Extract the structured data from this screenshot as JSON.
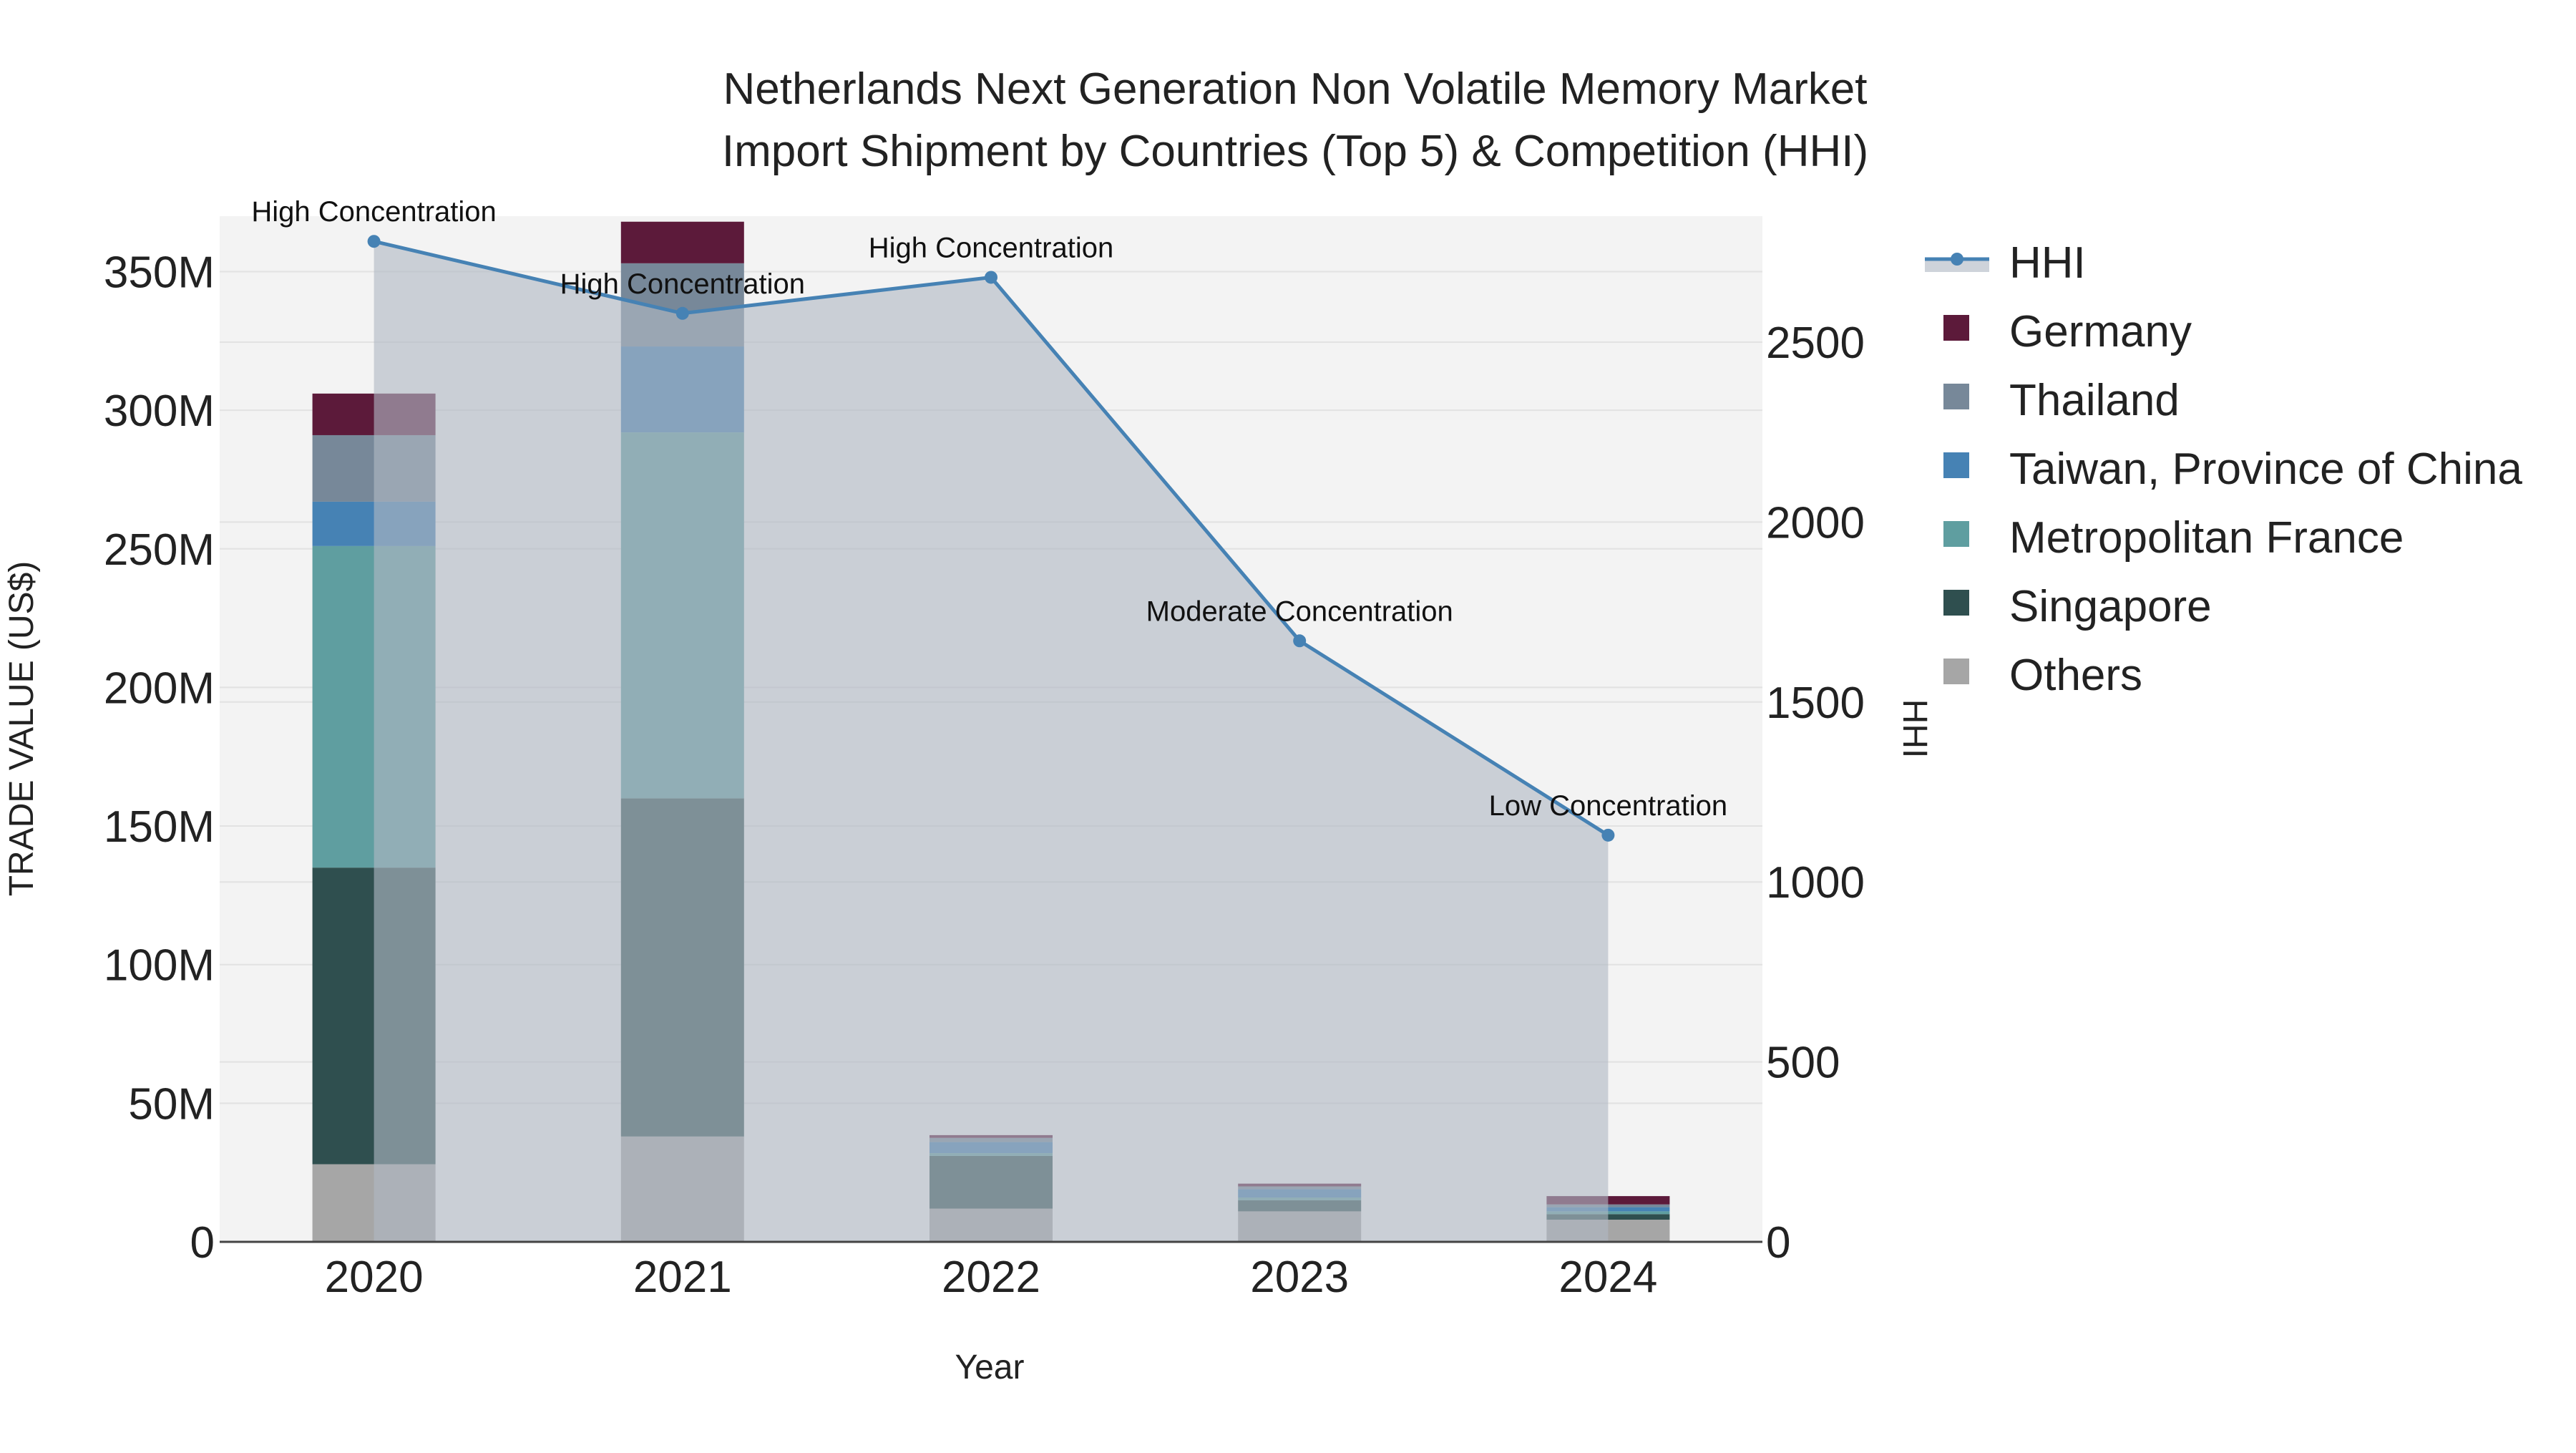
{
  "chart_data": {
    "type": "bar",
    "title_lines": [
      "Netherlands Next Generation Non Volatile Memory Market",
      "Import Shipment by Countries (Top 5) & Competition (HHI)"
    ],
    "xlabel": "Year",
    "ylabel": "TRADE VALUE (US$)",
    "y2label": "HHI",
    "categories": [
      "2020",
      "2021",
      "2022",
      "2023",
      "2024"
    ],
    "ylim": [
      0,
      370000000
    ],
    "y2lim": [
      0,
      2850
    ],
    "y_ticks": [
      {
        "value": 0,
        "label": "0"
      },
      {
        "value": 50000000,
        "label": "50M"
      },
      {
        "value": 100000000,
        "label": "100M"
      },
      {
        "value": 150000000,
        "label": "150M"
      },
      {
        "value": 200000000,
        "label": "200M"
      },
      {
        "value": 250000000,
        "label": "250M"
      },
      {
        "value": 300000000,
        "label": "300M"
      },
      {
        "value": 350000000,
        "label": "350M"
      }
    ],
    "y2_ticks": [
      {
        "value": 0,
        "label": "0"
      },
      {
        "value": 500,
        "label": "500"
      },
      {
        "value": 1000,
        "label": "1000"
      },
      {
        "value": 1500,
        "label": "1500"
      },
      {
        "value": 2000,
        "label": "2000"
      },
      {
        "value": 2500,
        "label": "2500"
      }
    ],
    "series": [
      {
        "name": "Others",
        "color": "#a6a6a6",
        "values": [
          28000000,
          38000000,
          12000000,
          11000000,
          8000000
        ]
      },
      {
        "name": "Singapore",
        "color": "#2f4f4f",
        "values": [
          107000000,
          122000000,
          19000000,
          4000000,
          2000000
        ]
      },
      {
        "name": "Metropolitan France",
        "color": "#5f9ea0",
        "values": [
          116000000,
          132000000,
          1000000,
          1000000,
          1000000
        ]
      },
      {
        "name": "Taiwan, Province of China",
        "color": "#4682b4",
        "values": [
          16000000,
          31000000,
          4000000,
          3000000,
          1500000
        ]
      },
      {
        "name": "Thailand",
        "color": "#778899",
        "values": [
          24000000,
          30000000,
          1500000,
          1000000,
          1000000
        ]
      },
      {
        "name": "Germany",
        "color": "#5c1a3a",
        "values": [
          15000000,
          15000000,
          1000000,
          1000000,
          3000000
        ]
      }
    ],
    "hhi": {
      "name": "HHI",
      "color": "#4682b4",
      "values": [
        2780,
        2580,
        2680,
        1670,
        1130
      ],
      "annotations": [
        "High Concentration",
        "High Concentration",
        "High Concentration",
        "Moderate Concentration",
        "Low Concentration"
      ]
    },
    "legend_order": [
      "HHI",
      "Germany",
      "Thailand",
      "Taiwan, Province of China",
      "Metropolitan France",
      "Singapore",
      "Others"
    ],
    "legend_position": "right"
  }
}
